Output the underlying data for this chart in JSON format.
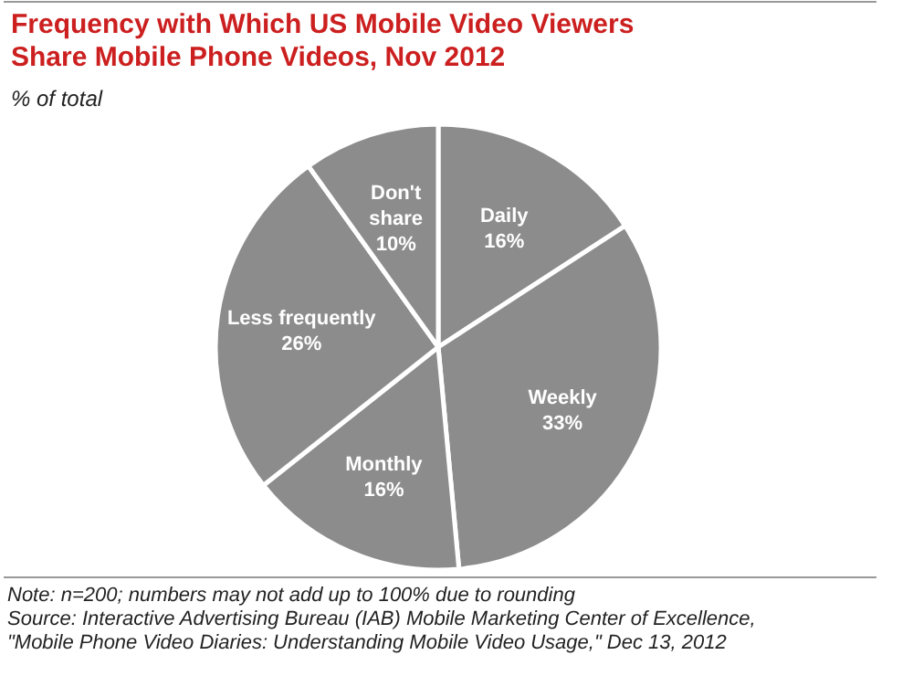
{
  "chart_data": {
    "type": "pie",
    "title": "Frequency with Which US Mobile Video Viewers Share Mobile Phone Videos, Nov 2012",
    "subtitle": "% of total",
    "categories": [
      "Daily",
      "Weekly",
      "Monthly",
      "Less frequently",
      "Don't share"
    ],
    "values": [
      16,
      33,
      16,
      26,
      10
    ],
    "value_labels": [
      "16%",
      "33%",
      "16%",
      "26%",
      "10%"
    ],
    "colors": [
      "#8c8c8c",
      "#8c8c8c",
      "#8c8c8c",
      "#8c8c8c",
      "#8c8c8c"
    ],
    "annotations": [
      "Note: n=200; numbers may not add up to 100% due to rounding",
      "Source: Interactive Advertising Bureau (IAB) Mobile Marketing Center of Excellence, \"Mobile Phone Video Diaries: Understanding Mobile Video Usage,\" Dec 13, 2012"
    ]
  }
}
